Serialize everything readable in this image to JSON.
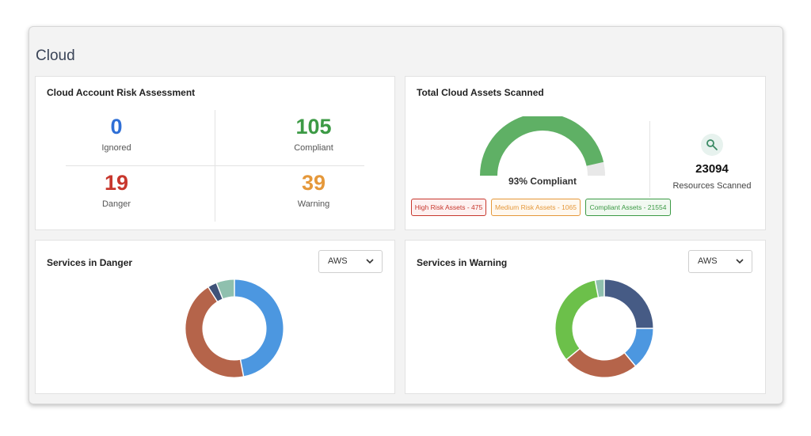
{
  "page": {
    "title": "Cloud"
  },
  "risk": {
    "title": "Cloud Account Risk Assessment",
    "stats": [
      {
        "value": "0",
        "label": "Ignored",
        "color": "#2f6fd6"
      },
      {
        "value": "105",
        "label": "Compliant",
        "color": "#3c9a45"
      },
      {
        "value": "19",
        "label": "Danger",
        "color": "#c8372d"
      },
      {
        "value": "39",
        "label": "Warning",
        "color": "#e5983a"
      }
    ]
  },
  "assets": {
    "title": "Total Cloud Assets Scanned",
    "gauge_label": "93% Compliant",
    "compliant_fraction": 0.93,
    "gauge_color": "#5fb065",
    "tags": [
      {
        "label": "High Risk Assets - 475",
        "color": "#c8372d",
        "bg": "#fdf1f1"
      },
      {
        "label": "Medium Risk Assets - 1065",
        "color": "#e5983a",
        "bg": "#fff8ef"
      },
      {
        "label": "Compliant Assets - 21554",
        "color": "#3c9a45",
        "bg": "#f1f9f1"
      }
    ],
    "resources_count": "23094",
    "resources_label": "Resources Scanned",
    "resources_icon": "search-icon"
  },
  "danger": {
    "title": "Services in Danger",
    "select_value": "AWS",
    "donut": [
      {
        "value": 47,
        "color": "#4c97e0"
      },
      {
        "value": 44,
        "color": "#b5644a"
      },
      {
        "value": 3,
        "color": "#3f5279"
      },
      {
        "value": 6,
        "color": "#8fc0ae"
      }
    ]
  },
  "warning": {
    "title": "Services in Warning",
    "select_value": "AWS",
    "donut": [
      {
        "value": 25,
        "color": "#465b85"
      },
      {
        "value": 14,
        "color": "#4c97e0"
      },
      {
        "value": 25,
        "color": "#b5644a"
      },
      {
        "value": 33,
        "color": "#6cc04a"
      },
      {
        "value": 3,
        "color": "#8fc0ae"
      }
    ]
  }
}
